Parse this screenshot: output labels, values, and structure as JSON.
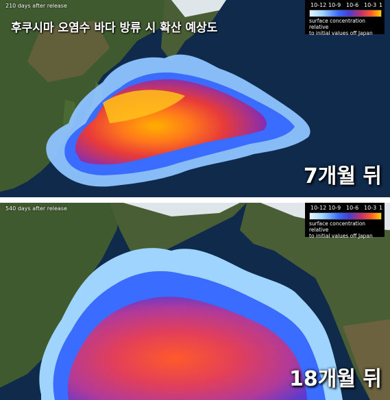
{
  "top_panel": {
    "days_label": "210 days after release",
    "title": "후쿠시마 오염수 바다 방류 시 확산 예상도",
    "period_label": "7개월 뒤"
  },
  "bottom_panel": {
    "days_label": "540 days after release",
    "period_label": "18개월 뒤"
  },
  "legend": {
    "ticks": [
      "10-12",
      "10-9",
      "10-6",
      "10-3",
      "1"
    ],
    "caption_line1": "surface concentration relative",
    "caption_line2": "to initial values off Japan",
    "colors": [
      "#e6f4ff",
      "#9fd4ff",
      "#3a6cff",
      "#4a3dd0",
      "#c0326e",
      "#ff5a2a",
      "#ffd200"
    ]
  },
  "colors": {
    "ocean": "#0f2a4a",
    "land_green": "#3f5a2e",
    "land_brown": "#7a6444",
    "snow": "#e8eef2"
  }
}
